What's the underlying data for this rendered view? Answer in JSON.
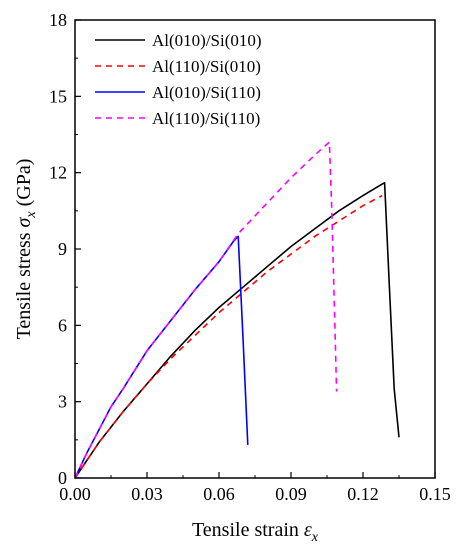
{
  "chart_data": {
    "type": "line",
    "xlabel": "Tensile strain",
    "xlabel_symbol": "ε",
    "xlabel_sub": "x",
    "ylabel": "Tensile stress",
    "ylabel_symbol": "σ",
    "ylabel_sub": "x",
    "ylabel_unit": "(GPa)",
    "xlim": [
      0,
      0.15
    ],
    "ylim": [
      0,
      18
    ],
    "xticks": [
      "0.00",
      "0.03",
      "0.06",
      "0.09",
      "0.12",
      "0.15"
    ],
    "yticks": [
      "0",
      "3",
      "6",
      "9",
      "12",
      "15",
      "18"
    ],
    "grid": false,
    "legend_position": "top-right",
    "series": [
      {
        "name": "Al(010)/Si(010)",
        "color": "#000000",
        "dash": "solid",
        "x": [
          0,
          0.005,
          0.01,
          0.015,
          0.02,
          0.03,
          0.04,
          0.05,
          0.06,
          0.07,
          0.08,
          0.09,
          0.1,
          0.11,
          0.12,
          0.128,
          0.129,
          0.131,
          0.133,
          0.135
        ],
        "y": [
          0,
          0.7,
          1.4,
          2.0,
          2.6,
          3.7,
          4.8,
          5.8,
          6.7,
          7.5,
          8.3,
          9.1,
          9.8,
          10.5,
          11.1,
          11.55,
          11.6,
          7.5,
          3.5,
          1.6
        ]
      },
      {
        "name": "Al(110)/Si(010)",
        "color": "#ff0000",
        "dash": "6,5",
        "x": [
          0,
          0.005,
          0.01,
          0.015,
          0.02,
          0.03,
          0.04,
          0.05,
          0.06,
          0.07,
          0.08,
          0.09,
          0.1,
          0.11,
          0.12,
          0.128
        ],
        "y": [
          0,
          0.7,
          1.4,
          2.0,
          2.6,
          3.7,
          4.7,
          5.6,
          6.5,
          7.3,
          8.1,
          8.8,
          9.5,
          10.1,
          10.7,
          11.1
        ]
      },
      {
        "name": "Al(010)/Si(110)",
        "color": "#0000ff",
        "dash": "solid",
        "x": [
          0,
          0.005,
          0.01,
          0.015,
          0.02,
          0.03,
          0.04,
          0.05,
          0.06,
          0.066,
          0.068,
          0.07,
          0.072
        ],
        "y": [
          0,
          1.0,
          1.9,
          2.8,
          3.5,
          5.0,
          6.2,
          7.4,
          8.5,
          9.3,
          9.5,
          5.5,
          1.3
        ]
      },
      {
        "name": "Al(110)/Si(110)",
        "color": "#ff00ff",
        "dash": "6,5",
        "x": [
          0,
          0.005,
          0.01,
          0.015,
          0.02,
          0.03,
          0.04,
          0.05,
          0.06,
          0.068,
          0.075,
          0.08,
          0.09,
          0.1,
          0.106,
          0.107,
          0.108,
          0.109
        ],
        "y": [
          0,
          1.0,
          1.9,
          2.8,
          3.5,
          5.0,
          6.2,
          7.4,
          8.5,
          9.6,
          10.3,
          10.8,
          11.8,
          12.7,
          13.2,
          10.5,
          7.0,
          3.4
        ]
      }
    ]
  }
}
